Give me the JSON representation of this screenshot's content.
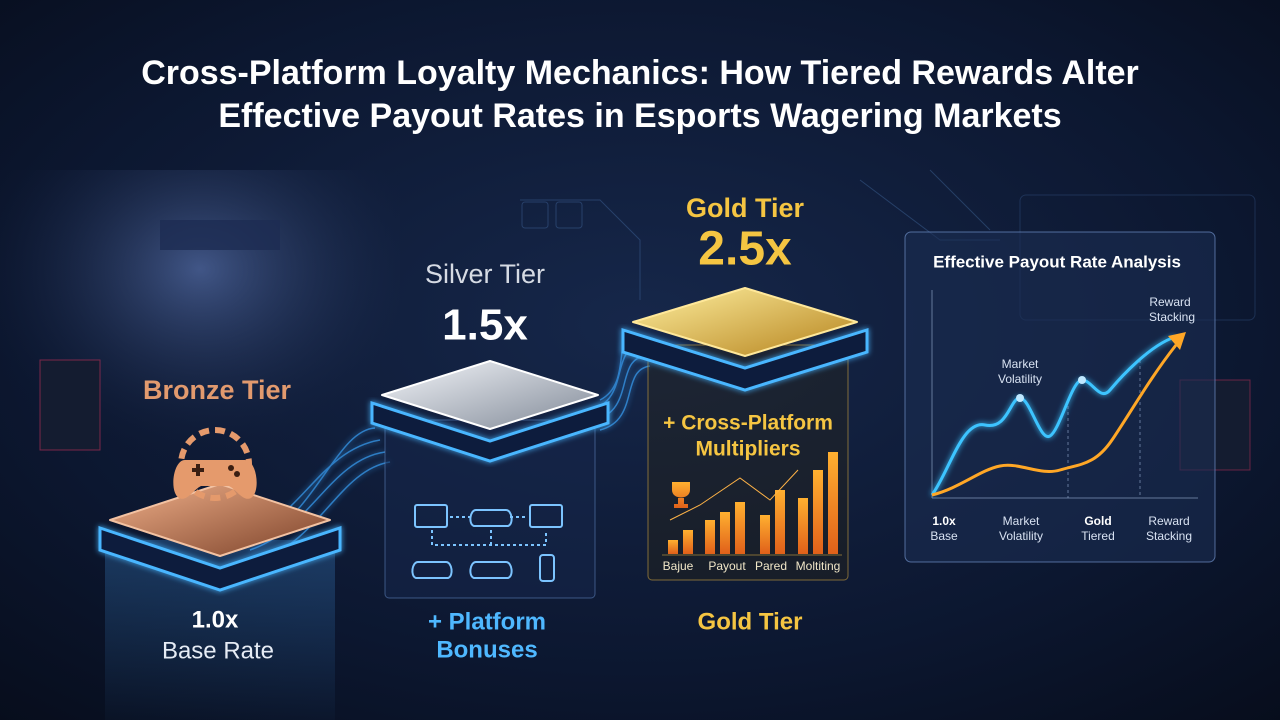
{
  "title": [
    "Cross-Platform Loyalty Mechanics: How Tiered Rewards Alter",
    "Effective Payout Rates in Esports Wagering Markets"
  ],
  "tiers": [
    {
      "name": "Bronze Tier",
      "caption": [
        "1.0x",
        "Base Rate"
      ]
    },
    {
      "name": "Silver Tier",
      "multiplier": "1.5x",
      "caption": [
        "+ Platform",
        "Bonuses"
      ]
    },
    {
      "name": "Gold Tier",
      "multiplier": "2.5x",
      "panel_title": [
        "+ Cross-Platform",
        "Multipliers"
      ],
      "panel_labels": [
        "Bajue",
        "Payout",
        "Pared",
        "Moltiting"
      ],
      "caption": [
        "Gold Tier"
      ]
    }
  ],
  "analysis": {
    "title": "Effective Payout Rate Analysis",
    "annotations": [
      [
        "Market",
        "Volatility"
      ],
      [
        "Reward",
        "Stacking"
      ]
    ],
    "x_labels": [
      [
        "1.0x",
        "Base"
      ],
      [
        "Market",
        "Volatility"
      ],
      [
        "Gold",
        "Tiered"
      ],
      [
        "Reward",
        "Stacking"
      ]
    ]
  }
}
